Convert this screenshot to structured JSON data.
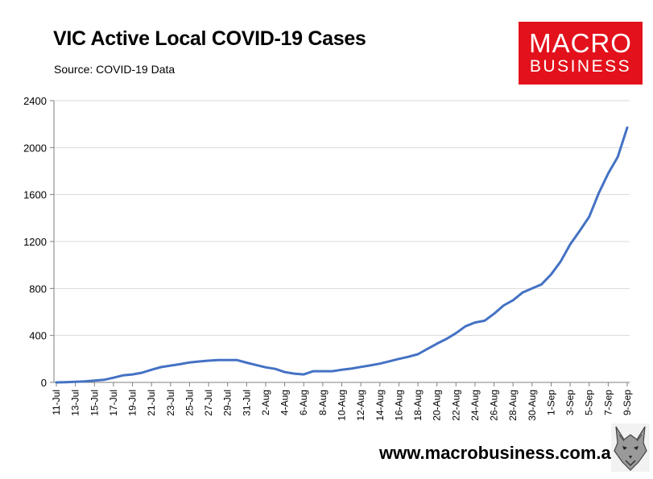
{
  "header": {
    "title": "VIC Active Local COVID-19 Cases",
    "source": "Source: COVID-19 Data"
  },
  "logo": {
    "line1": "MACRO",
    "line2": "BUSINESS",
    "color": "#e3111b"
  },
  "footer": {
    "url": "www.macrobusiness.com.au",
    "mascot_icon": "wolf-icon"
  },
  "chart_data": {
    "type": "line",
    "title": "VIC Active Local COVID-19 Cases",
    "xlabel": "",
    "ylabel": "",
    "ylim": [
      0,
      2400
    ],
    "yticks": [
      0,
      400,
      800,
      1200,
      1600,
      2000,
      2400
    ],
    "grid": true,
    "legend": "none",
    "line_color": "#4472c4",
    "x_tick_labels": [
      "11-Jul",
      "13-Jul",
      "15-Jul",
      "17-Jul",
      "19-Jul",
      "21-Jul",
      "23-Jul",
      "25-Jul",
      "27-Jul",
      "29-Jul",
      "31-Jul",
      "2-Aug",
      "4-Aug",
      "6-Aug",
      "8-Aug",
      "10-Aug",
      "12-Aug",
      "14-Aug",
      "16-Aug",
      "18-Aug",
      "20-Aug",
      "22-Aug",
      "24-Aug",
      "26-Aug",
      "28-Aug",
      "30-Aug",
      "1-Sep",
      "3-Sep",
      "5-Sep",
      "7-Sep",
      "9-Sep"
    ],
    "series": [
      {
        "x": [
          "11-Jul",
          "12-Jul",
          "13-Jul",
          "14-Jul",
          "15-Jul",
          "16-Jul",
          "17-Jul",
          "18-Jul",
          "19-Jul",
          "20-Jul",
          "21-Jul",
          "22-Jul",
          "23-Jul",
          "24-Jul",
          "25-Jul",
          "26-Jul",
          "27-Jul",
          "28-Jul",
          "29-Jul",
          "30-Jul",
          "31-Jul",
          "1-Aug",
          "2-Aug",
          "3-Aug",
          "4-Aug",
          "5-Aug",
          "6-Aug",
          "7-Aug",
          "8-Aug",
          "9-Aug",
          "10-Aug",
          "11-Aug",
          "12-Aug",
          "13-Aug",
          "14-Aug",
          "15-Aug",
          "16-Aug",
          "17-Aug",
          "18-Aug",
          "19-Aug",
          "20-Aug",
          "21-Aug",
          "22-Aug",
          "23-Aug",
          "24-Aug",
          "25-Aug",
          "26-Aug",
          "27-Aug",
          "28-Aug",
          "29-Aug",
          "30-Aug",
          "31-Aug",
          "1-Sep",
          "2-Sep",
          "3-Sep",
          "4-Sep",
          "5-Sep",
          "6-Sep",
          "7-Sep",
          "8-Sep",
          "9-Sep"
        ],
        "values": [
          0,
          2,
          5,
          8,
          15,
          22,
          40,
          60,
          68,
          82,
          108,
          130,
          143,
          155,
          170,
          178,
          185,
          190,
          190,
          190,
          168,
          148,
          128,
          115,
          88,
          75,
          68,
          95,
          95,
          95,
          108,
          117,
          132,
          145,
          160,
          180,
          200,
          218,
          240,
          285,
          330,
          370,
          420,
          478,
          510,
          525,
          585,
          655,
          700,
          765,
          800,
          835,
          920,
          1030,
          1175,
          1290,
          1410,
          1610,
          1780,
          1920,
          2170
        ]
      }
    ]
  }
}
